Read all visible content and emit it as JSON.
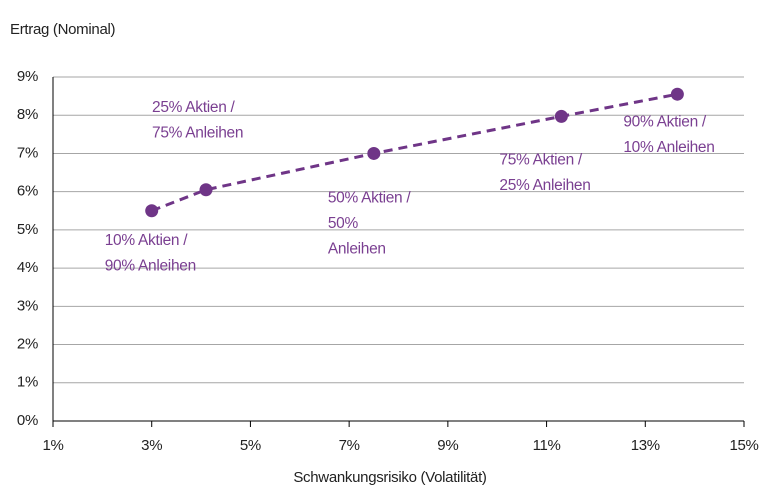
{
  "chart_data": {
    "type": "scatter",
    "y_axis_title": "Ertrag (Nominal)",
    "x_axis_title": "Schwankungsrisiko (Volatilität)",
    "x": [
      3,
      4.1,
      7.5,
      11.3,
      13.65
    ],
    "values": [
      5.5,
      6.05,
      7.0,
      7.97,
      8.55
    ],
    "point_labels": [
      [
        "10% Aktien /",
        "90% Anleihen"
      ],
      [
        "25% Aktien /",
        "75% Anleihen"
      ],
      [
        "50% Aktien /",
        "50%",
        "Anleihen"
      ],
      [
        "75% Aktien /",
        "25% Anleihen"
      ],
      [
        "90% Aktien /",
        "10% Anleihen"
      ]
    ],
    "color": "#6f3587",
    "line_style": "dashed",
    "xlim": [
      1,
      15
    ],
    "xticks": [
      {
        "value": 1,
        "label": "1%"
      },
      {
        "value": 3,
        "label": "3%"
      },
      {
        "value": 5,
        "label": "5%"
      },
      {
        "value": 7,
        "label": "7%"
      },
      {
        "value": 9,
        "label": "9%"
      },
      {
        "value": 11,
        "label": "11%"
      },
      {
        "value": 13,
        "label": "13%"
      },
      {
        "value": 15,
        "label": "15%"
      }
    ],
    "ylim": [
      0,
      9
    ],
    "yticks": [
      {
        "value": 0,
        "label": "0%"
      },
      {
        "value": 1,
        "label": "1%"
      },
      {
        "value": 2,
        "label": "2%"
      },
      {
        "value": 3,
        "label": "3%"
      },
      {
        "value": 4,
        "label": "4%"
      },
      {
        "value": 5,
        "label": "5%"
      },
      {
        "value": 6,
        "label": "6%"
      },
      {
        "value": 7,
        "label": "7%"
      },
      {
        "value": 8,
        "label": "8%"
      },
      {
        "value": 9,
        "label": "9%"
      }
    ],
    "grid": true
  }
}
